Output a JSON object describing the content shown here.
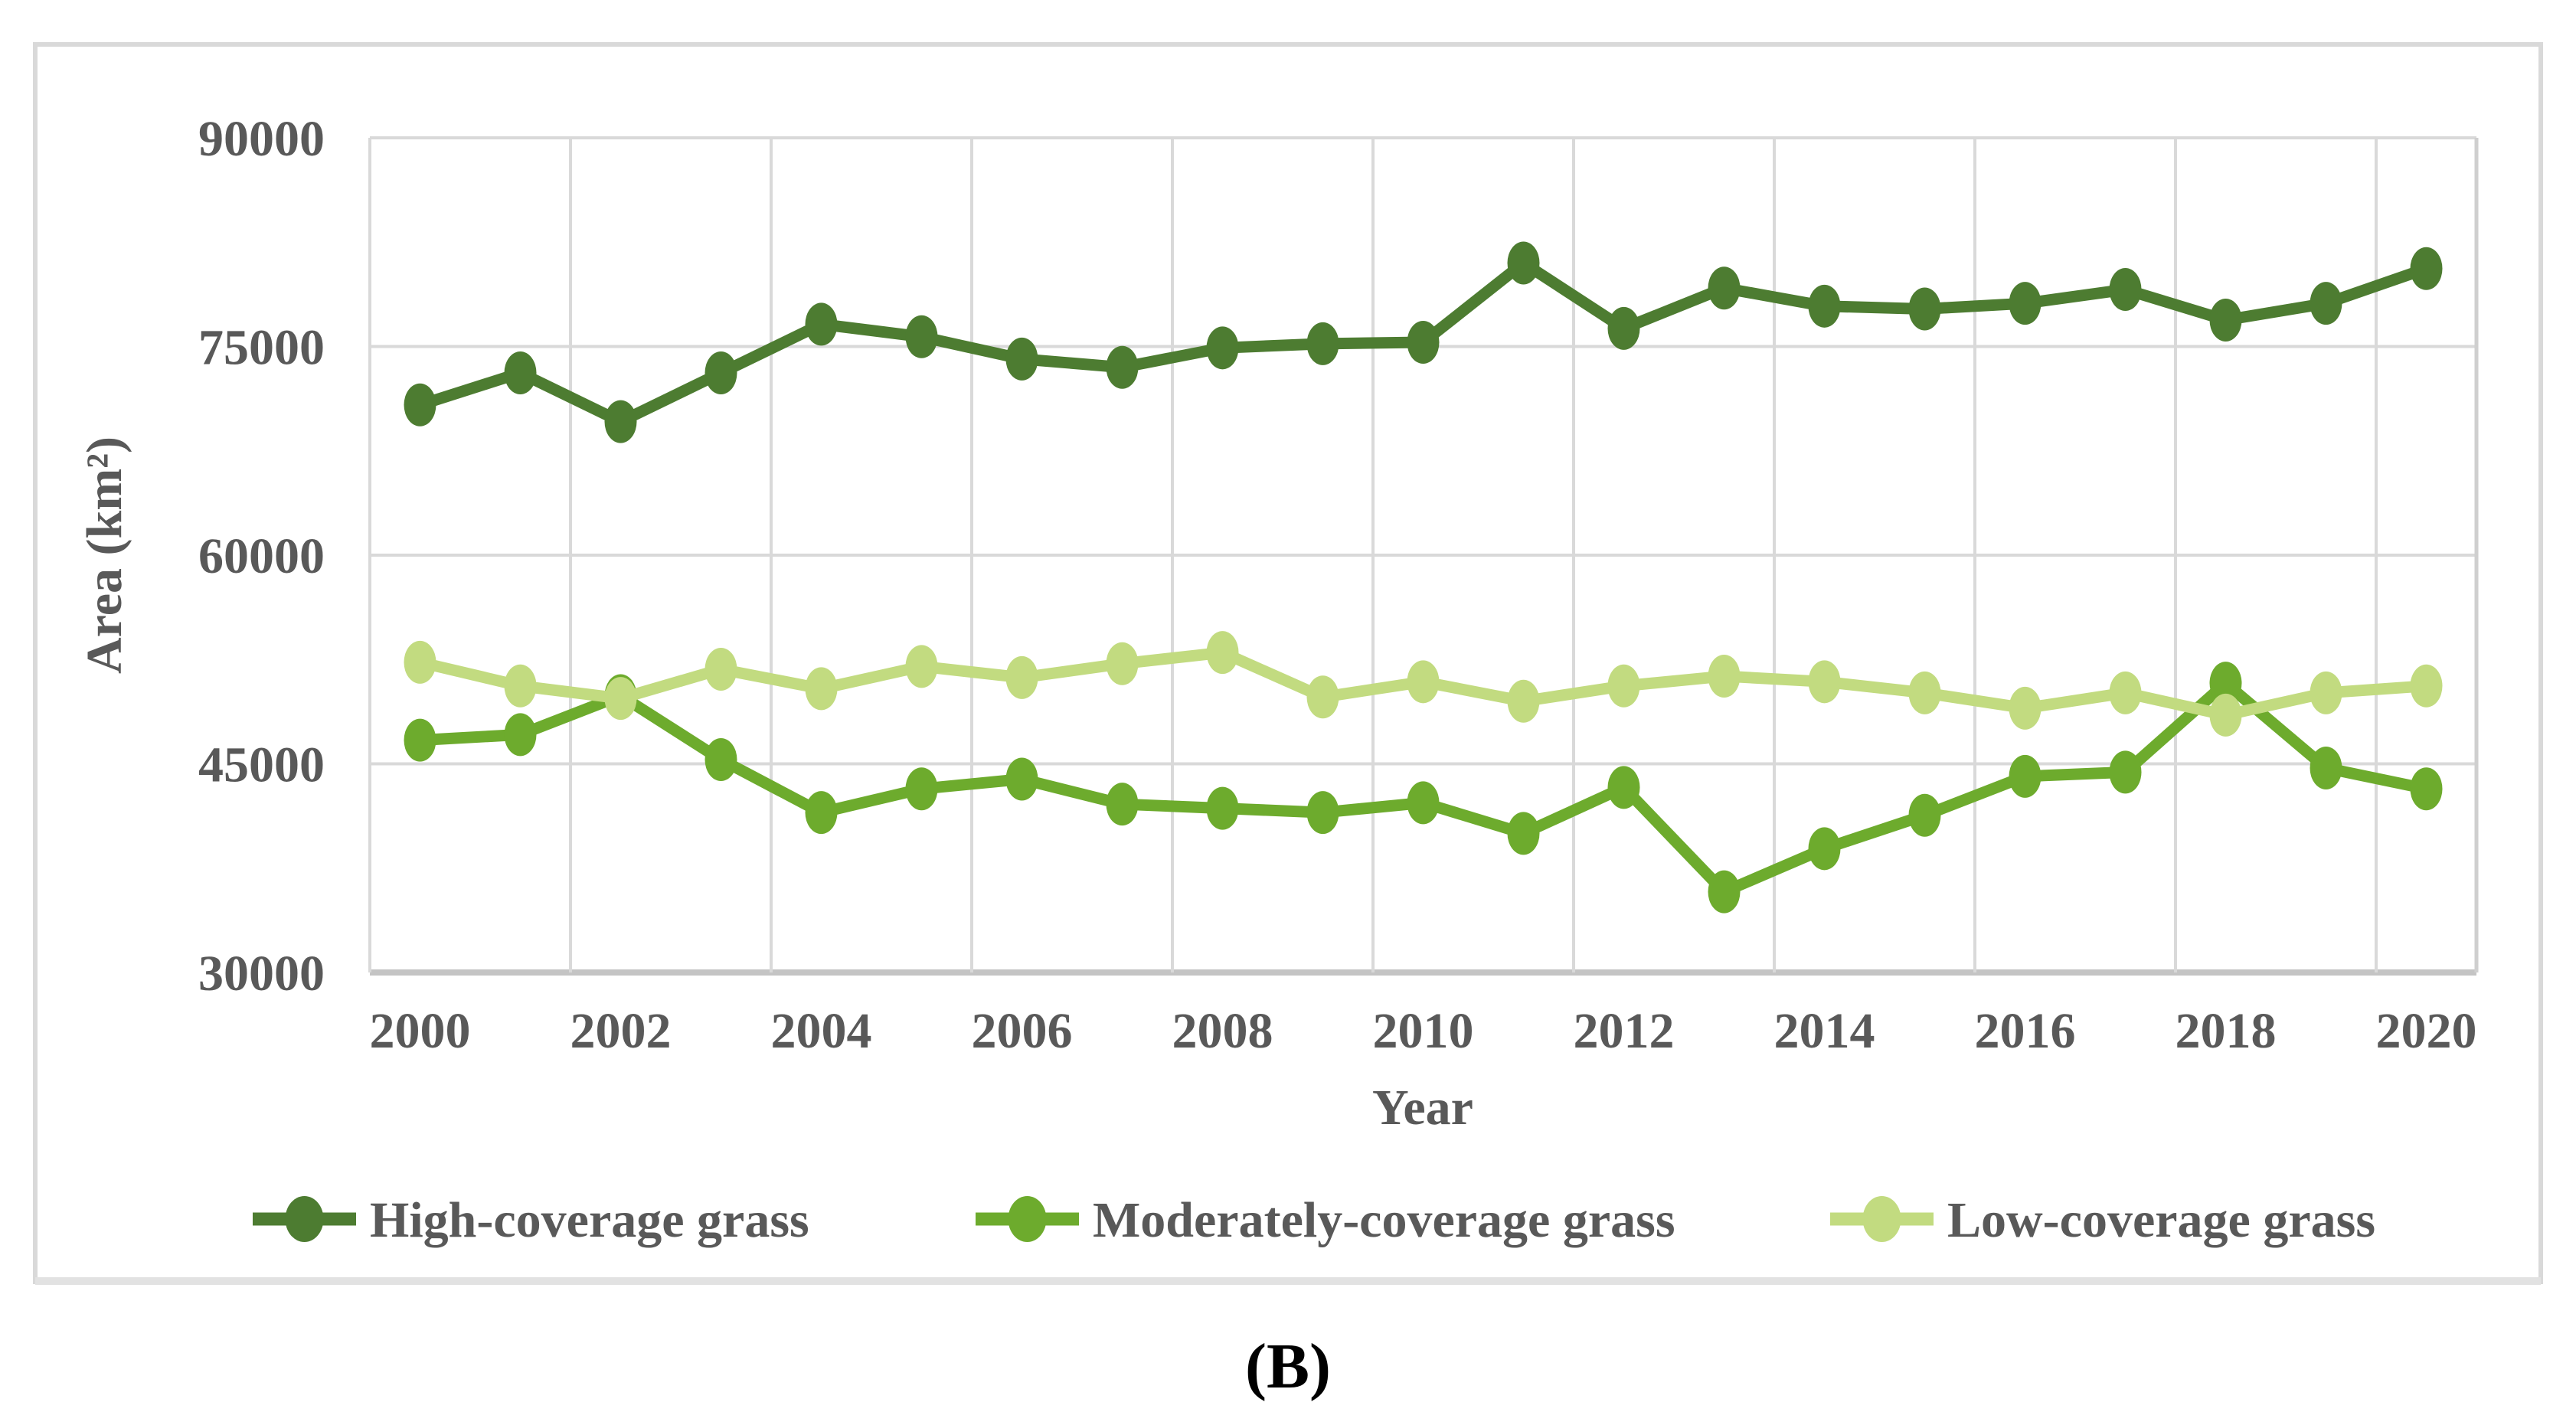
{
  "figure": {
    "caption": "(B)",
    "y_axis": {
      "title": "Area  (km²)",
      "tick_labels": [
        "90000",
        "75000",
        "60000",
        "45000",
        "30000"
      ]
    },
    "x_axis": {
      "title": "Year",
      "tick_labels": [
        "2000",
        "2002",
        "2004",
        "2006",
        "2008",
        "2010",
        "2012",
        "2014",
        "2016",
        "2018",
        "2020"
      ]
    },
    "legend": {
      "position": "bottom",
      "items": [
        {
          "label": "High-coverage grass",
          "color": "#4d7c31"
        },
        {
          "label": "Moderately-coverage grass",
          "color": "#6dab2d"
        },
        {
          "label": "Low-coverage grass",
          "color": "#c2db80"
        }
      ]
    },
    "colors": {
      "gridline": "#d9d9d9",
      "axis_line": "#c4c4c4",
      "panel_border": "#d9d9d9",
      "text": "#595959"
    }
  },
  "chart_data": {
    "type": "line",
    "title": "",
    "xlabel": "Year",
    "ylabel": "Area  (km²)",
    "x": [
      2000,
      2001,
      2002,
      2003,
      2004,
      2005,
      2006,
      2007,
      2008,
      2009,
      2010,
      2011,
      2012,
      2013,
      2014,
      2015,
      2016,
      2017,
      2018,
      2019,
      2020
    ],
    "xtick_labels": [
      "2000",
      "2002",
      "2004",
      "2006",
      "2008",
      "2010",
      "2012",
      "2014",
      "2016",
      "2018",
      "2020"
    ],
    "ylim": [
      30000,
      90000
    ],
    "yticks": [
      30000,
      45000,
      60000,
      75000,
      90000
    ],
    "grid": true,
    "legend_position": "bottom",
    "series": [
      {
        "name": "High-coverage grass",
        "color": "#4d7c31",
        "values": [
          70800,
          73100,
          69600,
          73100,
          76600,
          75700,
          74100,
          73500,
          74900,
          75200,
          75300,
          81000,
          76300,
          79200,
          77900,
          77700,
          78100,
          79100,
          76900,
          78100,
          80600
        ]
      },
      {
        "name": "Moderately-coverage grass",
        "color": "#6dab2d",
        "values": [
          46700,
          47100,
          49900,
          45300,
          41500,
          43200,
          43900,
          42100,
          41800,
          41500,
          42200,
          40000,
          43300,
          35800,
          38900,
          41300,
          44100,
          44400,
          50800,
          44700,
          43200
        ]
      },
      {
        "name": "Low-coverage grass",
        "color": "#c2db80",
        "values": [
          52300,
          50600,
          49700,
          51800,
          50400,
          52000,
          51200,
          52200,
          53000,
          49800,
          50900,
          49500,
          50600,
          51300,
          50900,
          50100,
          49000,
          50100,
          48500,
          50100,
          50600
        ]
      }
    ]
  }
}
